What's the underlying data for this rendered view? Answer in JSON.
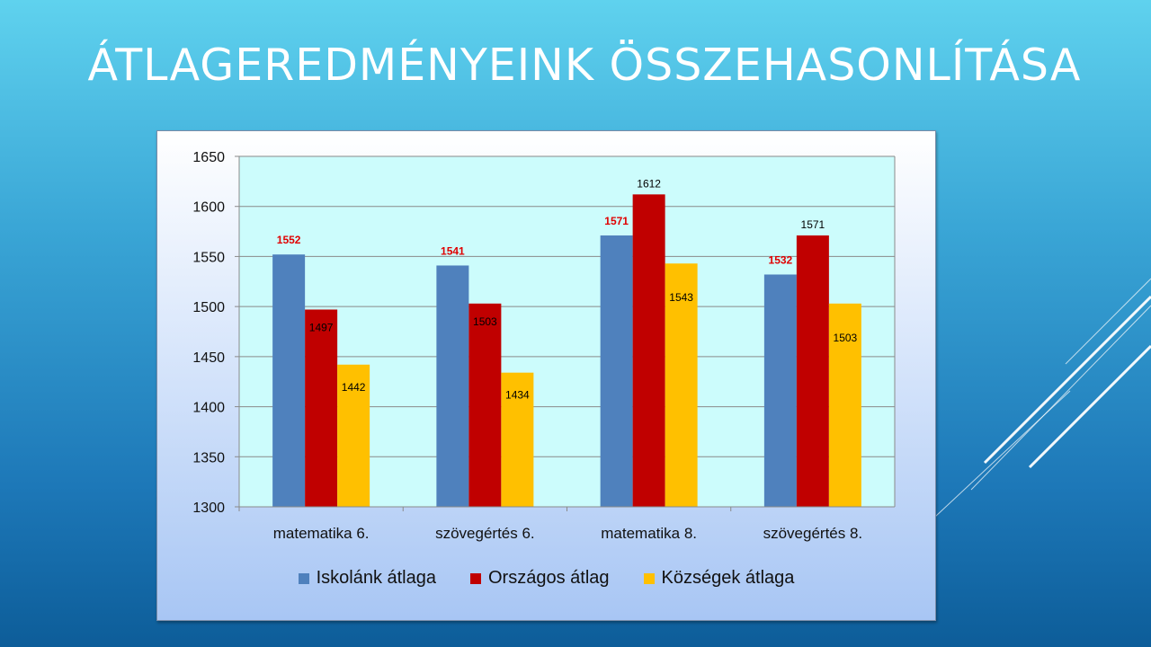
{
  "slide": {
    "title": "ÁTLAGEREDMÉNYEINK ÖSSZEHASONLÍTÁSA"
  },
  "colors": {
    "plot_background": "#ccfcfc",
    "grid": "#8a8a8a",
    "label_red": "#e00000",
    "label_black": "#000000"
  },
  "chart_data": {
    "type": "bar",
    "title": "",
    "xlabel": "",
    "ylabel": "",
    "categories": [
      "matematika 6.",
      "szövegértés 6.",
      "matematika 8.",
      "szövegértés 8."
    ],
    "ylim": [
      1300,
      1650
    ],
    "yticks": [
      "1650",
      "1600",
      "1550",
      "1500",
      "1450",
      "1400",
      "1350",
      "1300"
    ],
    "grid": true,
    "legend_position": "bottom",
    "series": [
      {
        "name": "Iskolánk átlaga",
        "color": "#4f81bd",
        "label_color": "#e00000",
        "label_bold": true,
        "values": [
          1552,
          1541,
          1571,
          1532
        ]
      },
      {
        "name": "Országos átlag",
        "color": "#c00000",
        "label_color": "#000000",
        "label_bold": false,
        "values": [
          1497,
          1503,
          1612,
          1571
        ]
      },
      {
        "name": "Községek átlaga",
        "color": "#ffc000",
        "label_color": "#000000",
        "label_bold": false,
        "values": [
          1442,
          1434,
          1543,
          1503
        ]
      }
    ]
  }
}
